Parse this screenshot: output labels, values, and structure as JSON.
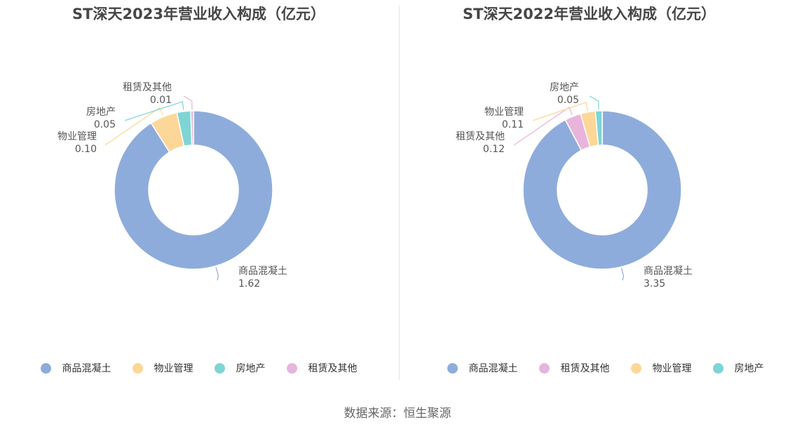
{
  "colors": {
    "商品混凝土": "#8eacdb",
    "物业管理": "#fdd797",
    "房地产": "#7fd4d6",
    "租赁及其他": "#e8b4dc"
  },
  "source": "数据来源：恒生聚源",
  "chart_data": [
    {
      "type": "pie",
      "title": "ST深天2023年营业收入构成（亿元）",
      "unit": "亿元",
      "slices": [
        {
          "name": "商品混凝土",
          "value": 1.62,
          "label": "1.62"
        },
        {
          "name": "物业管理",
          "value": 0.1,
          "label": "0.10"
        },
        {
          "name": "房地产",
          "value": 0.05,
          "label": "0.05"
        },
        {
          "name": "租赁及其他",
          "value": 0.01,
          "label": "0.01"
        }
      ],
      "legend": [
        "商品混凝土",
        "物业管理",
        "房地产",
        "租赁及其他"
      ],
      "legend_position": "bottom"
    },
    {
      "type": "pie",
      "title": "ST深天2022年营业收入构成（亿元）",
      "unit": "亿元",
      "slices": [
        {
          "name": "商品混凝土",
          "value": 3.35,
          "label": "3.35"
        },
        {
          "name": "租赁及其他",
          "value": 0.12,
          "label": "0.12"
        },
        {
          "name": "物业管理",
          "value": 0.11,
          "label": "0.11"
        },
        {
          "name": "房地产",
          "value": 0.05,
          "label": "0.05"
        }
      ],
      "legend": [
        "商品混凝土",
        "租赁及其他",
        "物业管理",
        "房地产"
      ],
      "legend_position": "bottom"
    }
  ]
}
